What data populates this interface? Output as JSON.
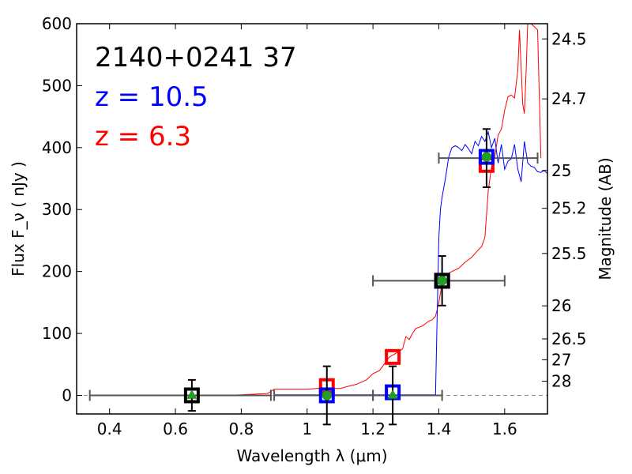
{
  "chart_data": {
    "type": "scatter",
    "xlim": [
      0.3,
      1.73
    ],
    "ylim": [
      -30,
      600
    ],
    "xlabel": "Wavelength  λ (μm)",
    "ylabel": "Flux  F_ν  ( nJy )",
    "right_ylabel": "Magnitude (AB)",
    "x_ticks": [
      0.4,
      0.6,
      0.8,
      1.0,
      1.2,
      1.4,
      1.6
    ],
    "x_tick_labels": [
      "0.4",
      "0.6",
      "0.8",
      "1",
      "1.2",
      "1.4",
      "1.6"
    ],
    "y_ticks": [
      0,
      100,
      200,
      300,
      400,
      500,
      600
    ],
    "y_tick_labels": [
      "0",
      "100",
      "200",
      "300",
      "400",
      "500",
      "600"
    ],
    "magnitude_ticks": [
      {
        "mag": 24.5,
        "label": "24.5"
      },
      {
        "mag": 24.7,
        "label": "24.7"
      },
      {
        "mag": 25.0,
        "label": "25"
      },
      {
        "mag": 25.2,
        "label": "25.2"
      },
      {
        "mag": 25.5,
        "label": "25.5"
      },
      {
        "mag": 26.0,
        "label": "26"
      },
      {
        "mag": 26.5,
        "label": "26.5"
      },
      {
        "mag": 27.0,
        "label": "27"
      },
      {
        "mag": 28.0,
        "label": "28"
      }
    ],
    "annotations": [
      {
        "text": "2140+0241 37",
        "color": "#000000"
      },
      {
        "text": "z = 10.5",
        "color": "#0000ff"
      },
      {
        "text": "z = 6.3",
        "color": "#ff0000"
      }
    ],
    "colors": {
      "observed": "#000000",
      "high_z_model": "#0000ff",
      "low_z_model": "#ff0000",
      "green_marker": "#22a022",
      "xerr_bars": "#555555",
      "zero_line": "#888888"
    },
    "observed_points": [
      {
        "x": 0.65,
        "y": 0,
        "yerr": 25,
        "xerr": [
          0.34,
          0.89
        ]
      },
      {
        "x": 1.06,
        "y": 0,
        "yerr": 47,
        "xerr": [
          0.9,
          1.2
        ]
      },
      {
        "x": 1.26,
        "y": 0,
        "yerr": 47,
        "xerr": [
          1.2,
          1.41
        ]
      },
      {
        "x": 1.41,
        "y": 185,
        "yerr": 40,
        "xerr": [
          1.2,
          1.6
        ]
      },
      {
        "x": 1.545,
        "y": 383,
        "yerr": 47,
        "xerr": [
          1.4,
          1.7
        ]
      }
    ],
    "green_points": [
      {
        "x": 0.65,
        "y": 0,
        "marker": "triangle"
      },
      {
        "x": 1.06,
        "y": 0,
        "marker": "circle"
      },
      {
        "x": 1.26,
        "y": 0,
        "marker": "triangle"
      },
      {
        "x": 1.41,
        "y": 185,
        "marker": "circle"
      },
      {
        "x": 1.545,
        "y": 385,
        "marker": "circle"
      }
    ],
    "high_z_model_points": [
      {
        "x": 1.06,
        "y": 0
      },
      {
        "x": 1.26,
        "y": 5
      },
      {
        "x": 1.41,
        "y": 185
      },
      {
        "x": 1.545,
        "y": 385
      }
    ],
    "low_z_model_points": [
      {
        "x": 1.06,
        "y": 15
      },
      {
        "x": 1.26,
        "y": 62
      },
      {
        "x": 1.41,
        "y": 185
      },
      {
        "x": 1.545,
        "y": 372
      }
    ],
    "high_z_curve": {
      "x": [
        0.9,
        0.95,
        1.0,
        1.05,
        1.1,
        1.15,
        1.2,
        1.25,
        1.3,
        1.35,
        1.39,
        1.395,
        1.4,
        1.405,
        1.41,
        1.42,
        1.43,
        1.44,
        1.45,
        1.46,
        1.47,
        1.48,
        1.49,
        1.5,
        1.51,
        1.52,
        1.53,
        1.54,
        1.55,
        1.56,
        1.57,
        1.58,
        1.59,
        1.6,
        1.61,
        1.62,
        1.63,
        1.64,
        1.65,
        1.66,
        1.67,
        1.68,
        1.69,
        1.7,
        1.71,
        1.72,
        1.73
      ],
      "y": [
        1,
        1,
        1,
        1,
        1,
        1,
        1,
        1,
        1,
        1,
        1,
        130,
        255,
        300,
        320,
        350,
        385,
        400,
        403,
        400,
        395,
        405,
        398,
        390,
        410,
        403,
        418,
        410,
        425,
        400,
        415,
        375,
        405,
        365,
        378,
        382,
        405,
        365,
        345,
        410,
        375,
        370,
        368,
        361,
        360,
        363,
        358
      ]
    },
    "low_z_curve": {
      "x": [
        0.75,
        0.8,
        0.88,
        0.9,
        0.95,
        1.0,
        1.05,
        1.1,
        1.12,
        1.15,
        1.18,
        1.2,
        1.22,
        1.25,
        1.27,
        1.29,
        1.3,
        1.31,
        1.32,
        1.33,
        1.35,
        1.37,
        1.38,
        1.39,
        1.4,
        1.41,
        1.42,
        1.44,
        1.46,
        1.48,
        1.5,
        1.52,
        1.53,
        1.54,
        1.55,
        1.56,
        1.57,
        1.58,
        1.59,
        1.6,
        1.61,
        1.62,
        1.63,
        1.64,
        1.645,
        1.655,
        1.66,
        1.665,
        1.67,
        1.68,
        1.7,
        1.71
      ],
      "y": [
        0,
        1,
        3,
        10,
        10,
        10,
        12,
        11,
        14,
        18,
        25,
        35,
        40,
        62,
        68,
        75,
        95,
        90,
        100,
        108,
        112,
        120,
        122,
        128,
        150,
        180,
        195,
        200,
        205,
        215,
        223,
        235,
        240,
        255,
        330,
        368,
        385,
        420,
        430,
        460,
        482,
        485,
        480,
        525,
        590,
        470,
        455,
        520,
        600,
        600,
        590,
        383
      ]
    }
  }
}
